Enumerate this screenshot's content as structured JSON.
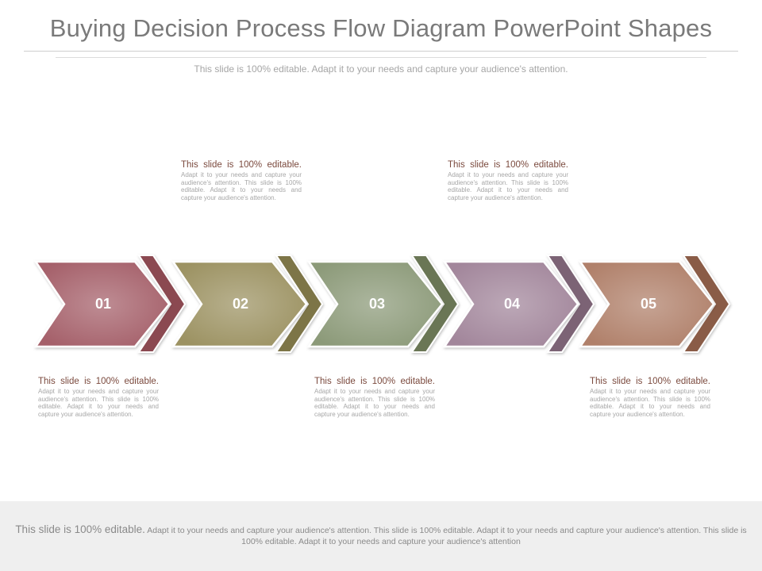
{
  "title": "Buying Decision Process Flow Diagram PowerPoint Shapes",
  "subtitle": "This slide is 100% editable. Adapt it to your needs and capture your audience's attention.",
  "steps": [
    {
      "label": "01",
      "main_color": "#a5606a",
      "back_color": "#8b4951"
    },
    {
      "label": "02",
      "main_color": "#9c9262",
      "back_color": "#7d7447"
    },
    {
      "label": "03",
      "main_color": "#8c9a79",
      "back_color": "#6a7654"
    },
    {
      "label": "04",
      "main_color": "#a2869b",
      "back_color": "#7c6475"
    },
    {
      "label": "05",
      "main_color": "#b0806a",
      "back_color": "#8a5c46"
    }
  ],
  "textboxes": [
    {
      "lead": "This slide is 100% editable.",
      "body": "Adapt it to your needs and capture your audience's attention. This slide is 100% editable. Adapt it to your needs and capture your audience's attention."
    },
    {
      "lead": "This slide is 100% editable.",
      "body": "Adapt it to your needs and capture your audience's attention. This slide is 100% editable. Adapt it to your needs and capture your audience's attention."
    },
    {
      "lead": "This slide is 100% editable.",
      "body": "Adapt it to your needs and capture your audience's attention. This slide is 100% editable. Adapt it to your needs and capture your audience's attention."
    },
    {
      "lead": "This slide is 100% editable.",
      "body": "Adapt it to your needs and capture your audience's attention. This slide is 100% editable. Adapt it to your needs and capture your audience's attention."
    },
    {
      "lead": "This slide is 100% editable.",
      "body": "Adapt it to your needs and capture your audience's attention. This slide is 100% editable. Adapt it to your needs and capture your audience's attention."
    }
  ],
  "footer": {
    "lead": "This slide is 100% editable.",
    "body": "Adapt it to your needs and capture your audience's attention. This slide is 100% editable. Adapt it to your needs and capture your audience's attention. This slide is 100% editable. Adapt it to your needs and capture your audience's attention"
  }
}
